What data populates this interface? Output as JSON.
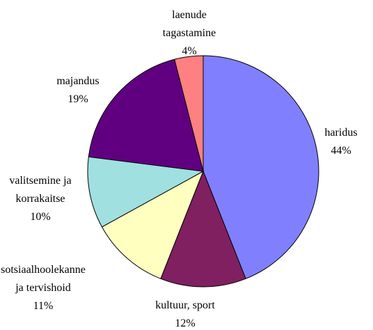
{
  "chart_data": {
    "type": "pie",
    "categories": [
      "haridus",
      "kultuur, sport",
      "sotsiaalhoolekanne ja tervishoid",
      "valitsemine ja korrakaitse",
      "majandus",
      "laenude tagastamine"
    ],
    "values": [
      44,
      12,
      11,
      10,
      19,
      4
    ],
    "value_labels": [
      "44%",
      "12%",
      "11%",
      "10%",
      "19%",
      "4%"
    ],
    "colors": [
      "#8080ff",
      "#802060",
      "#ffffc0",
      "#a0e0e0",
      "#600080",
      "#ff8080"
    ]
  }
}
